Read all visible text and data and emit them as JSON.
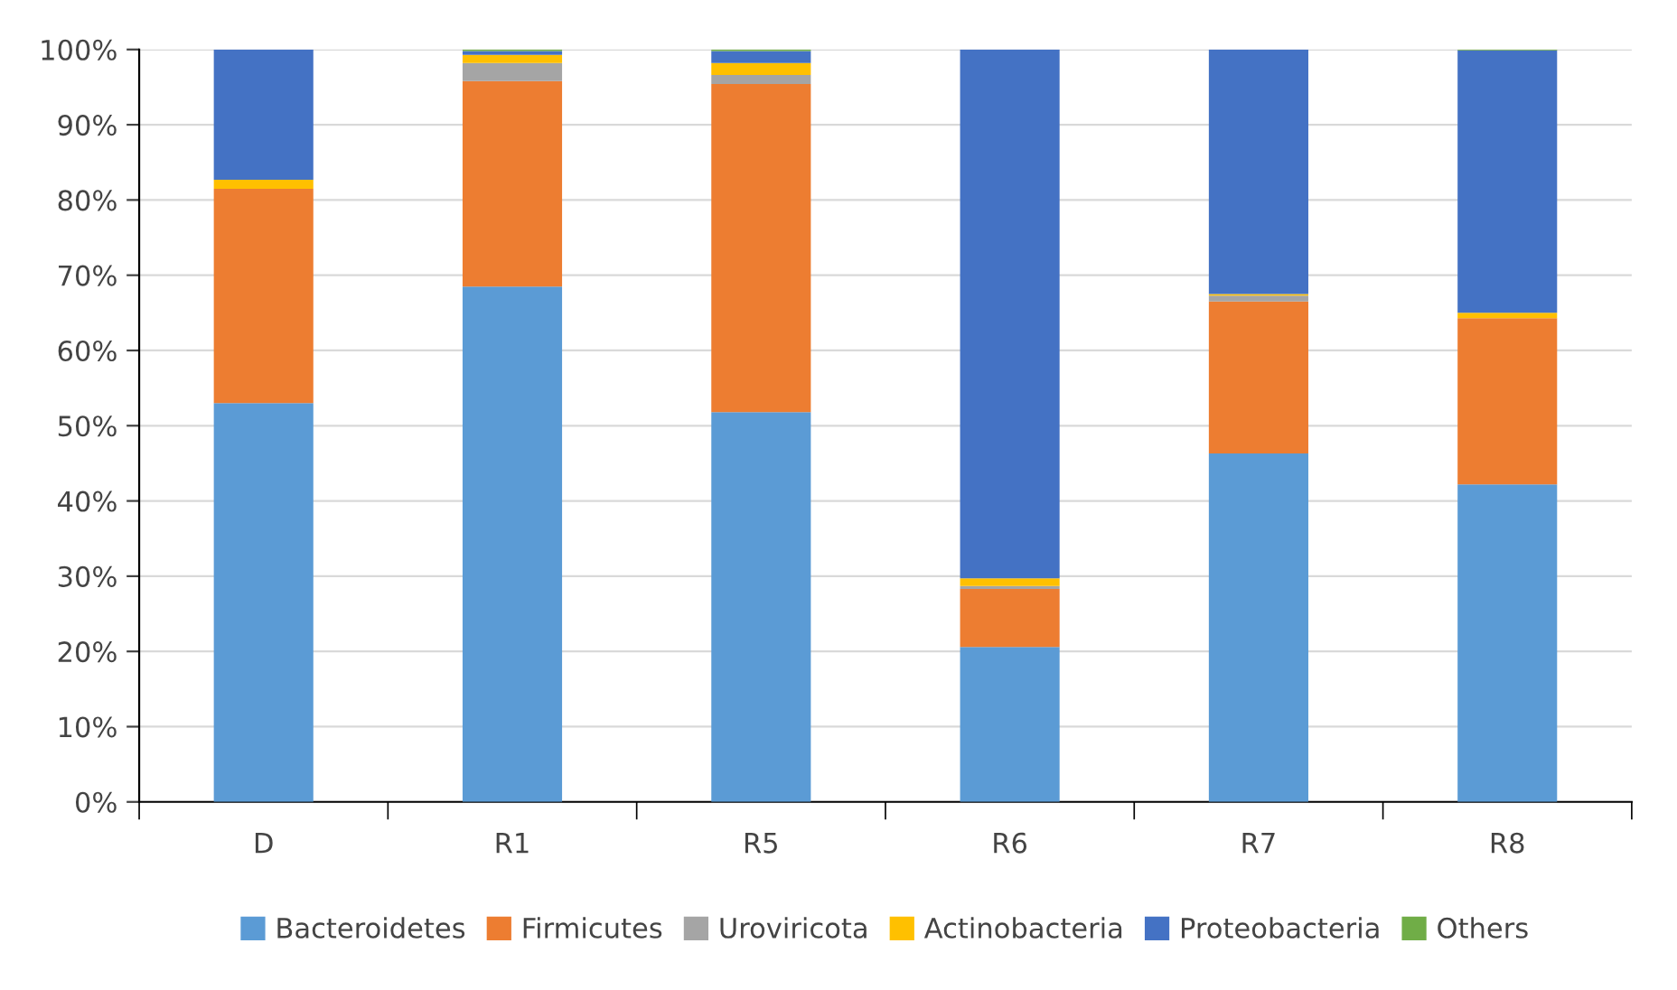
{
  "chart_data": {
    "type": "bar",
    "stacked": true,
    "categories": [
      "D",
      "R1",
      "R5",
      "R6",
      "R7",
      "R8"
    ],
    "series": [
      {
        "name": "Bacteroidetes",
        "color": "#5b9bd5",
        "values": [
          53.0,
          68.5,
          51.8,
          20.6,
          46.3,
          42.2
        ]
      },
      {
        "name": "Firmicutes",
        "color": "#ed7d31",
        "values": [
          28.5,
          27.3,
          43.6,
          7.7,
          20.2,
          22.1
        ]
      },
      {
        "name": "Uroviricota",
        "color": "#a5a5a5",
        "values": [
          null,
          2.4,
          1.2,
          0.4,
          0.8,
          null
        ]
      },
      {
        "name": "Actinobacteria",
        "color": "#ffc000",
        "values": [
          1.2,
          1.1,
          1.6,
          1.0,
          0.2,
          0.7
        ]
      },
      {
        "name": "Proteobacteria",
        "color": "#4472c4",
        "values": [
          17.3,
          0.5,
          1.6,
          70.3,
          32.5,
          34.9
        ]
      },
      {
        "name": "Others",
        "color": "#70ad47",
        "values": [
          0,
          0.2,
          0.2,
          0,
          0,
          0.1
        ]
      }
    ],
    "ylim": [
      0,
      100
    ],
    "yticks": [
      {
        "value": 0,
        "label": "0%"
      },
      {
        "value": 10,
        "label": "10%"
      },
      {
        "value": 20,
        "label": "20%"
      },
      {
        "value": 30,
        "label": "30%"
      },
      {
        "value": 40,
        "label": "40%"
      },
      {
        "value": 50,
        "label": "50%"
      },
      {
        "value": 60,
        "label": "60%"
      },
      {
        "value": 70,
        "label": "70%"
      },
      {
        "value": 80,
        "label": "80%"
      },
      {
        "value": 90,
        "label": "90%"
      },
      {
        "value": 100,
        "label": "100%"
      }
    ],
    "grid": "y",
    "legend": "bottom"
  }
}
